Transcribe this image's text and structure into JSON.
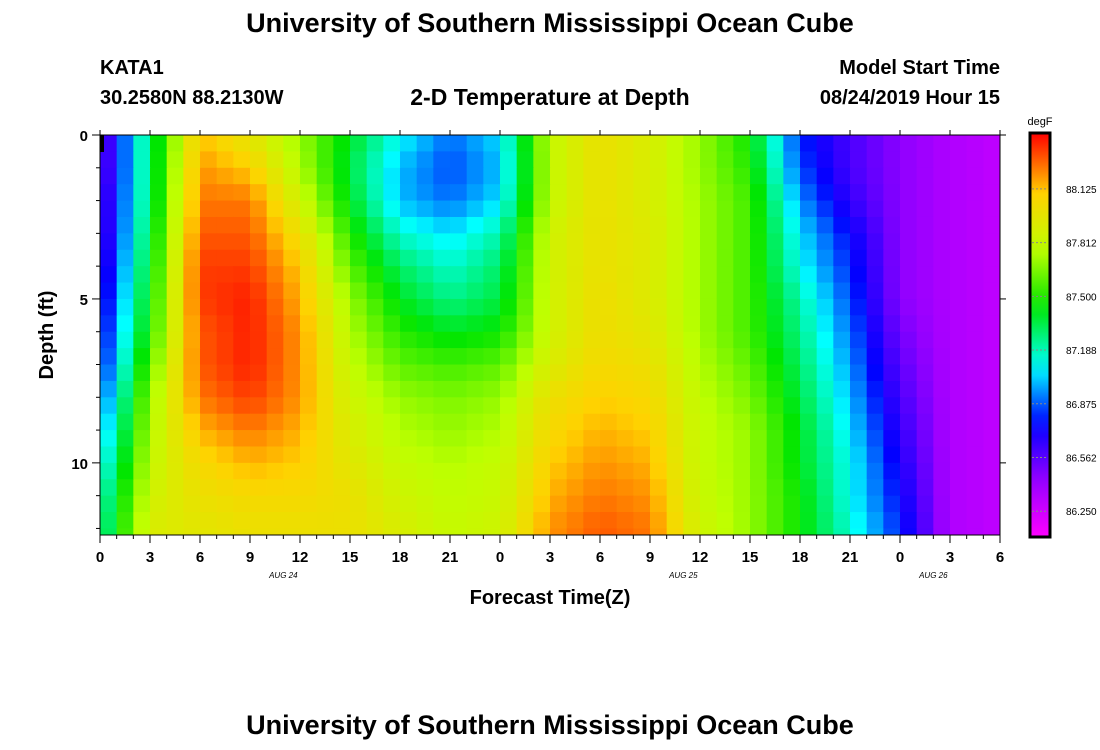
{
  "page": {
    "title": "University of Southern Mississippi Ocean Cube",
    "footer_title": "University of Southern Mississippi Ocean Cube",
    "station_id": "KATA1",
    "station_coords": "30.2580N 88.2130W",
    "plot_title": "2-D Temperature at Depth",
    "model_start_label": "Model Start Time",
    "model_start_value": "08/24/2019 Hour 15"
  },
  "chart_data": {
    "type": "heatmap",
    "title": "2-D Temperature at Depth",
    "xlabel": "Forecast Time(Z)",
    "ylabel": "Depth (ft)",
    "x_range_hours": [
      0,
      54
    ],
    "y_range_ft": [
      0,
      12.2
    ],
    "x_ticks": [
      {
        "hour": 0,
        "label": "0"
      },
      {
        "hour": 3,
        "label": "3"
      },
      {
        "hour": 6,
        "label": "6"
      },
      {
        "hour": 9,
        "label": "9"
      },
      {
        "hour": 12,
        "label": "12"
      },
      {
        "hour": 15,
        "label": "15"
      },
      {
        "hour": 18,
        "label": "18"
      },
      {
        "hour": 21,
        "label": "21"
      },
      {
        "hour": 24,
        "label": "0"
      },
      {
        "hour": 27,
        "label": "3"
      },
      {
        "hour": 30,
        "label": "6"
      },
      {
        "hour": 33,
        "label": "9"
      },
      {
        "hour": 36,
        "label": "12"
      },
      {
        "hour": 39,
        "label": "15"
      },
      {
        "hour": 42,
        "label": "18"
      },
      {
        "hour": 45,
        "label": "21"
      },
      {
        "hour": 48,
        "label": "0"
      },
      {
        "hour": 51,
        "label": "3"
      },
      {
        "hour": 54,
        "label": "6"
      }
    ],
    "date_labels": [
      {
        "hour": 11,
        "label": "AUG 24"
      },
      {
        "hour": 35,
        "label": "AUG 25"
      },
      {
        "hour": 50,
        "label": "AUG 26"
      }
    ],
    "y_ticks": [
      {
        "depth": 0,
        "label": "0"
      },
      {
        "depth": 5,
        "label": "5"
      },
      {
        "depth": 10,
        "label": "10"
      }
    ],
    "colorbar": {
      "unit": "degF",
      "min": 86.1,
      "max": 88.45,
      "ticks": [
        "88.125",
        "87.812",
        "87.500",
        "87.188",
        "86.875",
        "86.562",
        "86.250"
      ],
      "tick_values": [
        88.125,
        87.8125,
        87.5,
        87.1875,
        86.875,
        86.5625,
        86.25
      ]
    },
    "depths_ft": [
      0,
      1,
      2,
      3,
      4,
      5,
      6,
      7,
      8,
      9,
      10,
      11,
      12
    ],
    "hours": [
      0,
      3,
      6,
      9,
      12,
      15,
      18,
      21,
      24,
      27,
      30,
      33,
      36,
      39,
      42,
      45,
      48,
      51,
      54
    ],
    "values_degF": [
      [
        86.5,
        87.3,
        88.12,
        87.95,
        87.7,
        87.4,
        87.1,
        86.9,
        87.05,
        87.8,
        88.0,
        87.9,
        87.7,
        87.45,
        86.8,
        86.6,
        86.45,
        86.35,
        86.3
      ],
      [
        86.5,
        87.3,
        88.2,
        88.1,
        87.75,
        87.35,
        87.0,
        86.85,
        87.0,
        87.8,
        88.0,
        87.9,
        87.7,
        87.5,
        86.85,
        86.6,
        86.45,
        86.35,
        86.3
      ],
      [
        86.55,
        87.3,
        88.25,
        88.25,
        87.85,
        87.4,
        87.0,
        86.9,
        87.05,
        87.8,
        88.0,
        87.9,
        87.72,
        87.55,
        86.95,
        86.65,
        86.45,
        86.35,
        86.3
      ],
      [
        86.55,
        87.35,
        88.3,
        88.3,
        88.0,
        87.5,
        87.15,
        87.05,
        87.2,
        87.85,
        88.0,
        87.92,
        87.72,
        87.55,
        87.05,
        86.75,
        86.45,
        86.35,
        86.3
      ],
      [
        86.6,
        87.4,
        88.35,
        88.35,
        88.1,
        87.6,
        87.3,
        87.15,
        87.3,
        87.85,
        88.0,
        87.92,
        87.72,
        87.55,
        87.1,
        86.8,
        86.45,
        86.35,
        86.3
      ],
      [
        86.65,
        87.45,
        88.35,
        88.4,
        88.15,
        87.7,
        87.4,
        87.25,
        87.35,
        87.85,
        88.02,
        87.92,
        87.72,
        87.55,
        87.2,
        86.85,
        86.45,
        86.35,
        86.3
      ],
      [
        86.7,
        87.5,
        88.3,
        88.4,
        88.2,
        87.75,
        87.5,
        87.4,
        87.45,
        87.85,
        88.02,
        87.95,
        87.72,
        87.55,
        87.25,
        86.9,
        86.5,
        86.35,
        86.3
      ],
      [
        86.75,
        87.6,
        88.3,
        88.4,
        88.2,
        87.8,
        87.6,
        87.55,
        87.6,
        87.9,
        88.05,
        88.0,
        87.75,
        87.6,
        87.3,
        86.95,
        86.55,
        86.35,
        86.3
      ],
      [
        86.85,
        87.7,
        88.25,
        88.35,
        88.2,
        87.85,
        87.7,
        87.65,
        87.7,
        88.0,
        88.1,
        88.05,
        87.78,
        87.65,
        87.35,
        87.0,
        86.6,
        86.35,
        86.3
      ],
      [
        86.95,
        87.75,
        88.15,
        88.25,
        88.15,
        87.9,
        87.75,
        87.7,
        87.75,
        88.05,
        88.15,
        88.1,
        87.8,
        87.7,
        87.4,
        87.05,
        86.65,
        86.35,
        86.3
      ],
      [
        87.05,
        87.8,
        88.05,
        88.15,
        88.1,
        87.95,
        87.8,
        87.75,
        87.8,
        88.1,
        88.2,
        88.15,
        87.8,
        87.7,
        87.4,
        87.1,
        86.7,
        86.35,
        86.3
      ],
      [
        87.15,
        87.85,
        88.0,
        88.05,
        88.05,
        88.0,
        87.85,
        87.78,
        87.82,
        88.15,
        88.25,
        88.2,
        87.82,
        87.7,
        87.45,
        87.1,
        86.75,
        86.35,
        86.3
      ],
      [
        87.2,
        87.9,
        87.95,
        88.0,
        88.0,
        88.0,
        87.9,
        87.8,
        87.85,
        88.2,
        88.3,
        88.25,
        87.85,
        87.7,
        87.45,
        87.15,
        86.8,
        86.35,
        86.3
      ]
    ]
  }
}
